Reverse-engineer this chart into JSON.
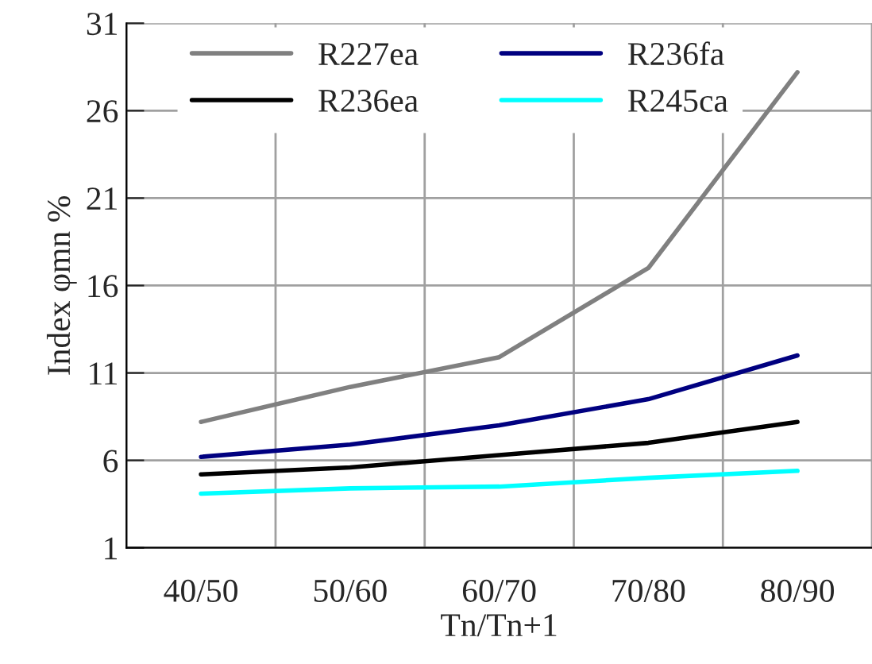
{
  "chart_data": {
    "type": "line",
    "xlabel": "Tn/Tn+1",
    "ylabel": "Index φmn %",
    "categories": [
      "40/50",
      "50/60",
      "60/70",
      "70/80",
      "80/90"
    ],
    "series": [
      {
        "name": "R227ea",
        "color": "#808080",
        "values": [
          8.2,
          10.2,
          11.9,
          17.0,
          28.2
        ]
      },
      {
        "name": "R236ea",
        "color": "#000000",
        "values": [
          5.2,
          5.6,
          6.3,
          7.0,
          8.2
        ]
      },
      {
        "name": "R236fa",
        "color": "#000080",
        "values": [
          6.2,
          6.9,
          8.0,
          9.5,
          12.0
        ]
      },
      {
        "name": "R245ca",
        "color": "#00ffff",
        "values": [
          4.1,
          4.4,
          4.5,
          5.0,
          5.4
        ]
      }
    ],
    "ylim": [
      1,
      31
    ],
    "yticks": [
      1,
      6,
      11,
      16,
      21,
      26,
      31
    ],
    "grid": true,
    "legend": "top left",
    "marker": "none",
    "line_style": "solid"
  }
}
